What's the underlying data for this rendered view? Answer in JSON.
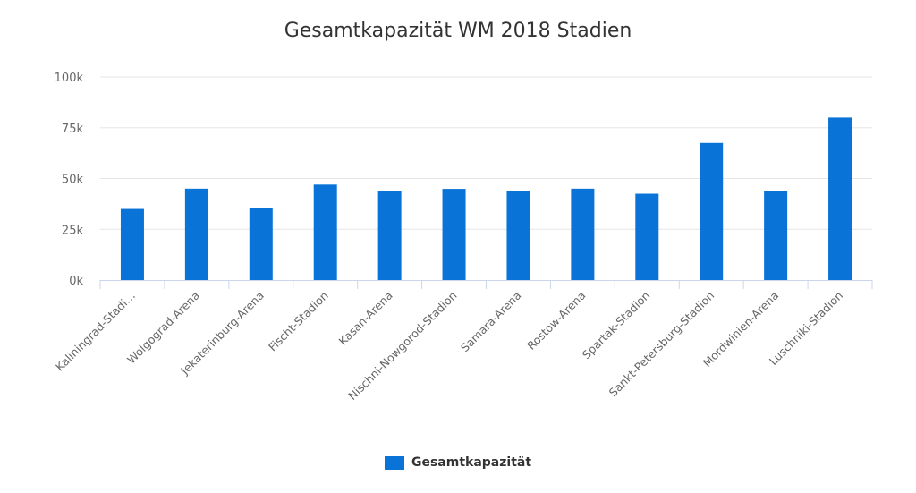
{
  "chart_data": {
    "type": "bar",
    "title": "Gesamtkapazität WM 2018 Stadien",
    "xlabel": "",
    "ylabel": "",
    "categories": [
      "Kaliningrad-Stadi…",
      "Wolgograd-Arena",
      "Jekaterinburg-Arena",
      "Fischt-Stadion",
      "Kasan-Arena",
      "Nischni-Nowgorod-Stadion",
      "Samara-Arena",
      "Rostow-Arena",
      "Spartak-Stadion",
      "Sankt-Petersburg-Stadion",
      "Mordwinien-Arena",
      "Luschniki-Stadion"
    ],
    "series": [
      {
        "name": "Gesamtkapazität",
        "color": "#0a73d7",
        "values": [
          35000,
          45000,
          35500,
          47000,
          44000,
          44900,
          44000,
          45000,
          42500,
          67500,
          44000,
          80000
        ]
      }
    ],
    "ylim": [
      0,
      100000
    ],
    "yticks": [
      0,
      25000,
      50000,
      75000,
      100000
    ],
    "ytick_labels": [
      "0k",
      "25k",
      "50k",
      "75k",
      "100k"
    ],
    "grid": true,
    "legend_position": "bottom-center"
  }
}
